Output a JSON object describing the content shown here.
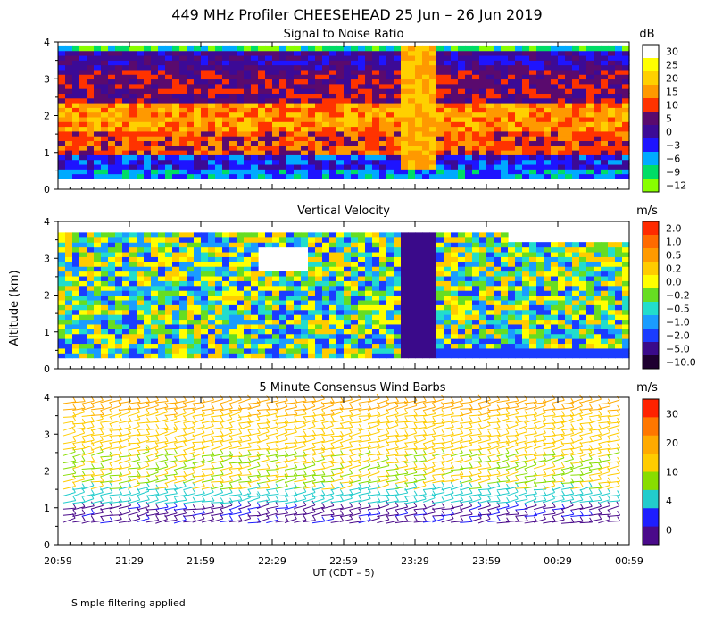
{
  "title": "449 MHz Profiler CHEESEHEAD 25 Jun – 26 Jun 2019",
  "ylabel": "Altitude (km)",
  "xlabel": "UT (CDT – 5)",
  "footnote": "Simple filtering applied",
  "chart_data": [
    {
      "type": "heatmap",
      "title": "Signal to Noise Ratio",
      "x_ticks": [
        "20:59",
        "21:29",
        "21:59",
        "22:29",
        "22:59",
        "23:29",
        "23:59",
        "00:29",
        "00:59"
      ],
      "ylim": [
        0,
        4
      ],
      "y_ticks": [
        "0",
        "1",
        "2",
        "3",
        "4"
      ],
      "colorbar": {
        "unit": "dB",
        "labels": [
          "30",
          "25",
          "20",
          "15",
          "10",
          "5",
          "0",
          "−3",
          "−6",
          "−9",
          "−12"
        ],
        "colors": [
          "#ffffff",
          "#ffff00",
          "#ffd000",
          "#ff9900",
          "#ff3300",
          "#5a0a6e",
          "#3c0a96",
          "#1e14ff",
          "#00aaff",
          "#00dd66",
          "#88ff00"
        ]
      },
      "profile": [
        {
          "altitude": 0.4,
          "level": 8
        },
        {
          "altitude": 0.6,
          "level": 7
        },
        {
          "altitude": 1.0,
          "level": 4
        },
        {
          "altitude": 1.6,
          "level": 3
        },
        {
          "altitude": 2.4,
          "level": 5
        },
        {
          "altitude": 3.2,
          "level": 6
        },
        {
          "altitude": 3.8,
          "level": 9
        }
      ]
    },
    {
      "type": "heatmap",
      "title": "Vertical Velocity",
      "x_ticks": [
        "20:59",
        "21:29",
        "21:59",
        "22:29",
        "22:59",
        "23:29",
        "23:59",
        "00:29",
        "00:59"
      ],
      "ylim": [
        0,
        4
      ],
      "y_ticks": [
        "0",
        "1",
        "2",
        "3",
        "4"
      ],
      "colorbar": {
        "unit": "m/s",
        "labels": [
          "2.0",
          "1.0",
          "0.5",
          "0.2",
          "0.0",
          "−0.2",
          "−0.5",
          "−1.0",
          "−2.0",
          "−5.0",
          "−10.0"
        ],
        "colors": [
          "#ff2a00",
          "#ff6a00",
          "#ff9a00",
          "#ffcc00",
          "#ffff00",
          "#66dd22",
          "#22ddcc",
          "#1a9cff",
          "#1a3cff",
          "#3a0a8a",
          "#1e0030"
        ]
      }
    },
    {
      "type": "scatter",
      "title": "5 Minute Consensus Wind Barbs",
      "x_ticks": [
        "20:59",
        "21:29",
        "21:59",
        "22:29",
        "22:59",
        "23:29",
        "23:59",
        "00:29",
        "00:59"
      ],
      "ylim": [
        0,
        4
      ],
      "y_ticks": [
        "0",
        "1",
        "2",
        "3",
        "4"
      ],
      "colorbar": {
        "unit": "m/s",
        "labels": [
          "30",
          "20",
          "10",
          "4",
          "0"
        ],
        "colors": [
          "#ff2200",
          "#ff7700",
          "#ffaa00",
          "#ffcc00",
          "#88dd00",
          "#22cccc",
          "#1e1eff",
          "#4a0a8a"
        ]
      },
      "wind_profile": [
        {
          "altitude": 0.6,
          "speed": 2
        },
        {
          "altitude": 1.0,
          "speed": 8
        },
        {
          "altitude": 1.5,
          "speed": 14
        },
        {
          "altitude": 2.5,
          "speed": 18
        },
        {
          "altitude": 3.5,
          "speed": 22
        }
      ]
    }
  ]
}
